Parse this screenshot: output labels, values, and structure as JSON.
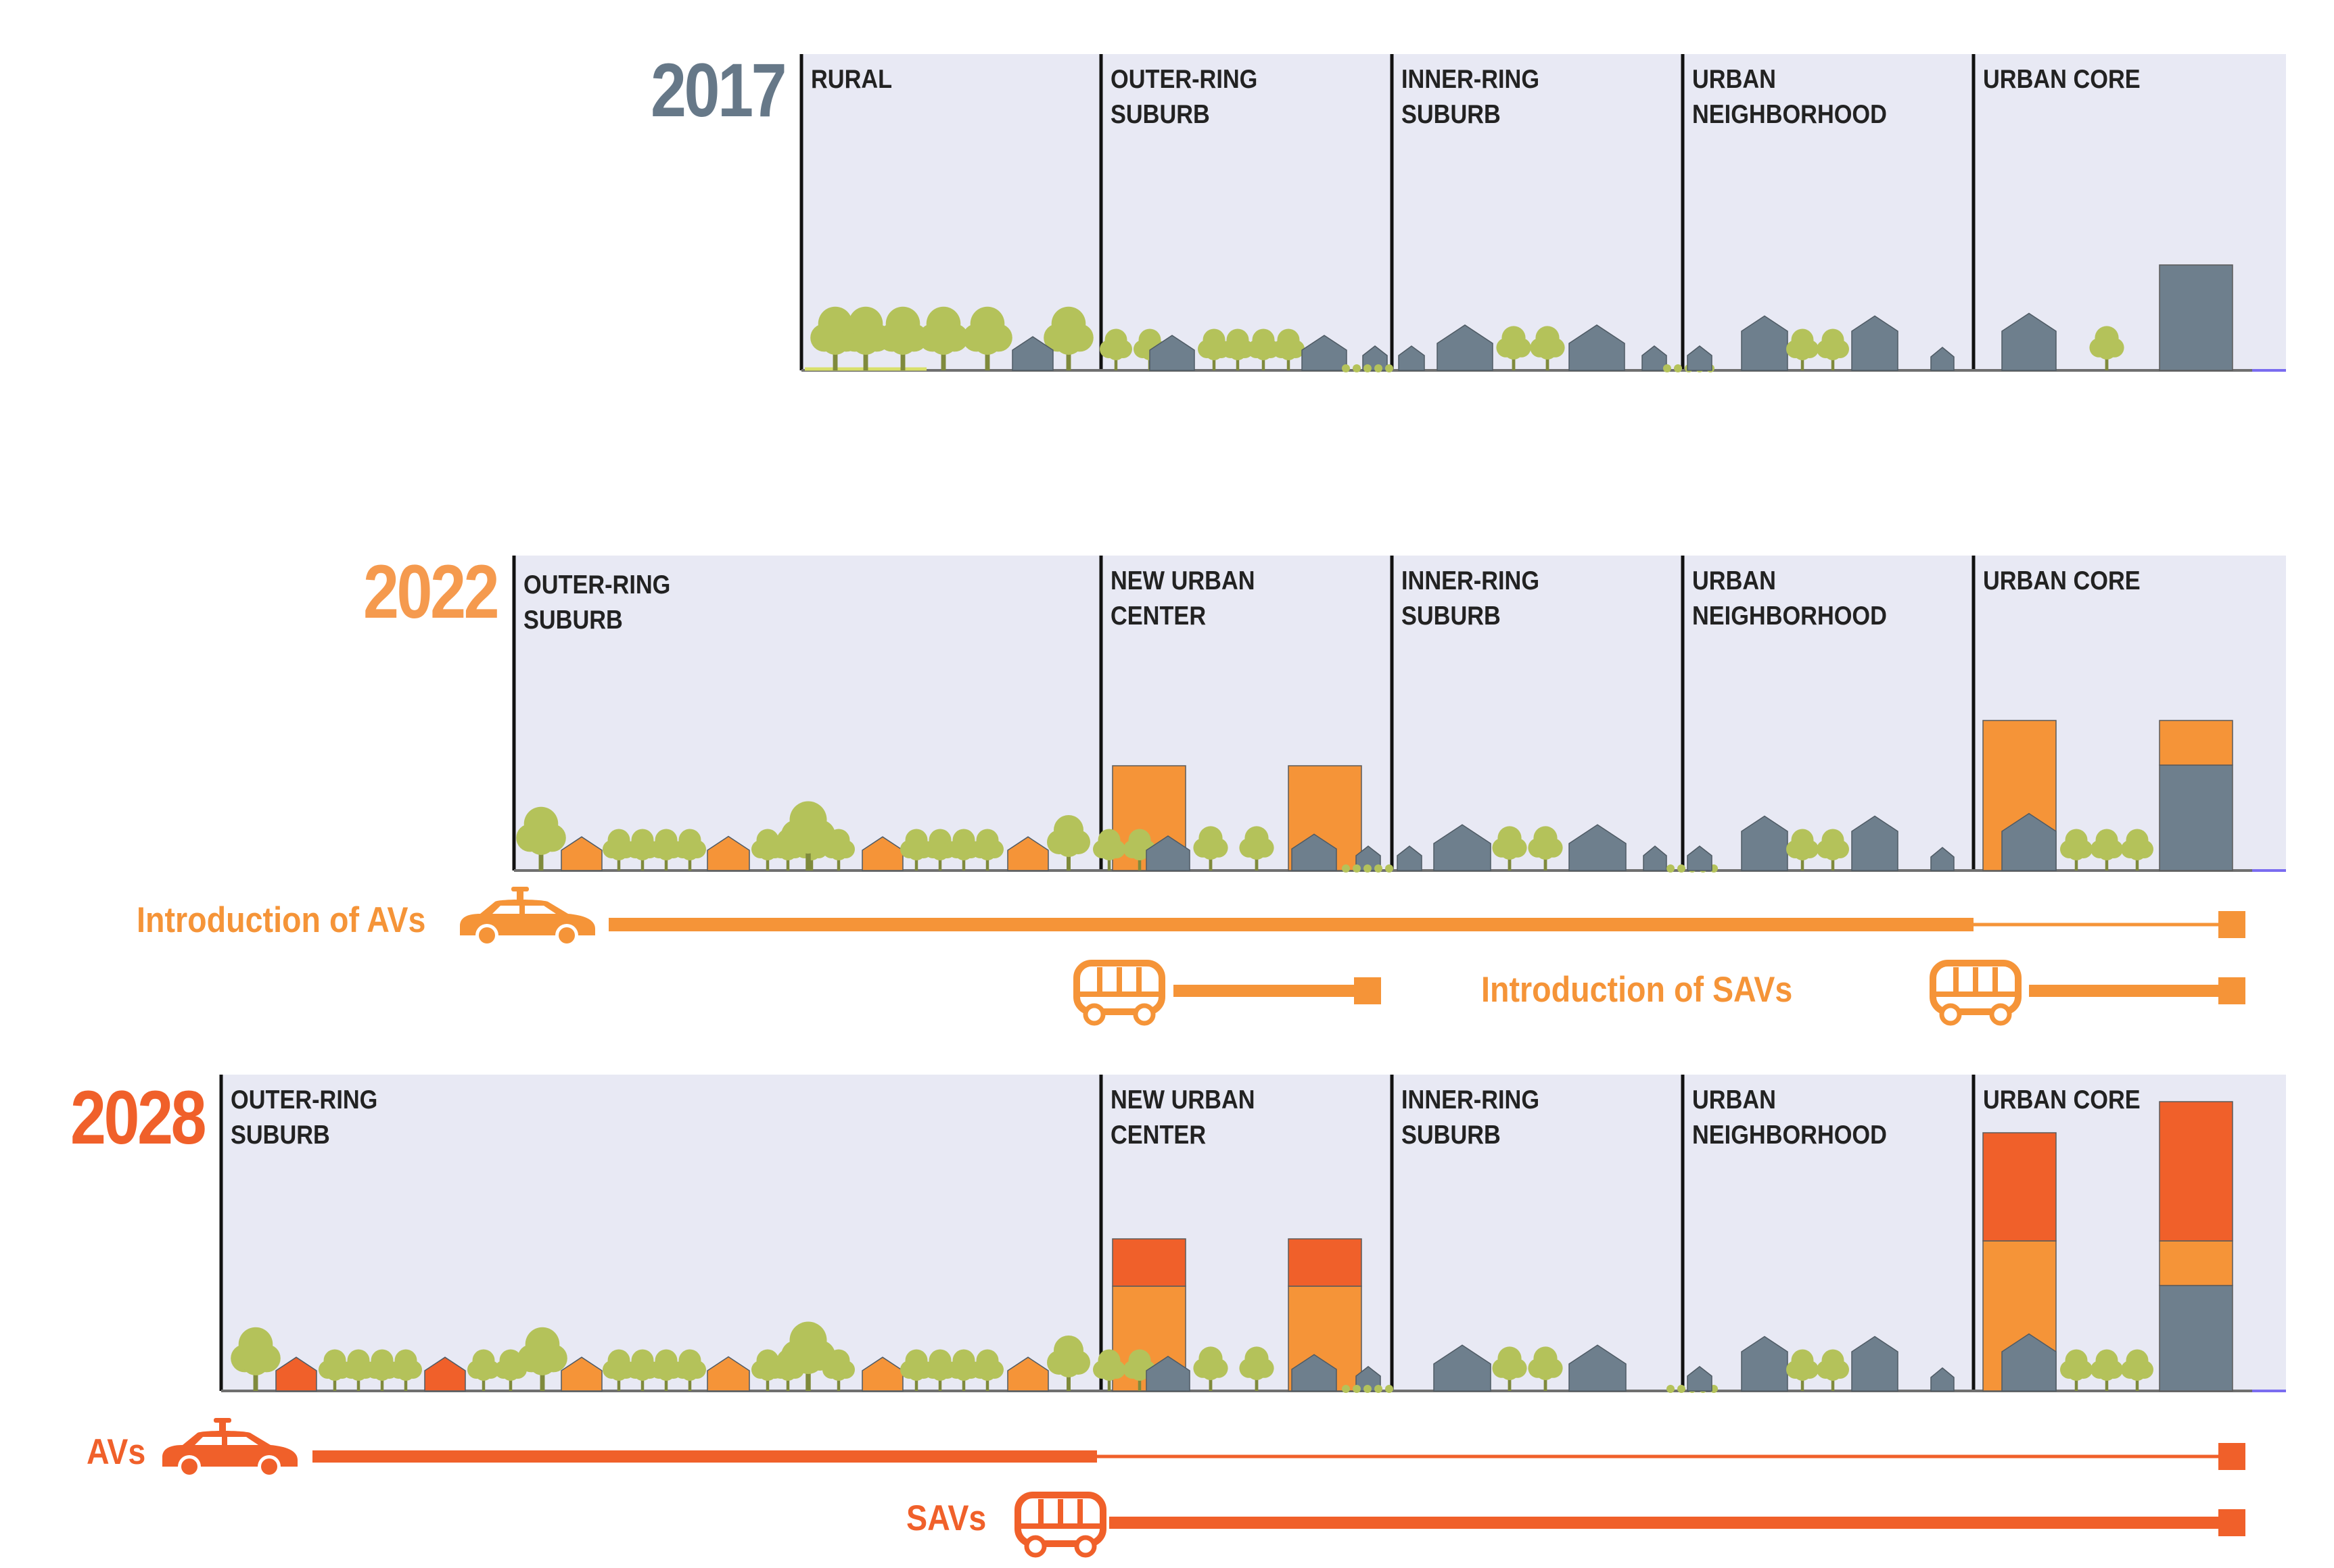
{
  "colors": {
    "panel": "#e8e9f4",
    "divider": "#111111",
    "ground": "#6f6f6f",
    "tree": "#b4c25a",
    "tree_trunk": "#7f8a3c",
    "house_gray": "#6e7f8d",
    "orange_light": "#f59438",
    "orange_dark": "#f0602a",
    "year_2017": "#667888",
    "year_2022": "#f59a4e",
    "year_2028": "#f0602a"
  },
  "rows": [
    {
      "year": "2017",
      "zones": [
        {
          "label": "RURAL"
        },
        {
          "label": "OUTER-RING\nSUBURB"
        },
        {
          "label": "INNER-RING\nSUBURB"
        },
        {
          "label": "URBAN\nNEIGHBORHOOD"
        },
        {
          "label": "URBAN CORE"
        }
      ]
    },
    {
      "year": "2022",
      "zones": [
        {
          "label": "OUTER-RING\nSUBURB"
        },
        {
          "label": "NEW URBAN\nCENTER"
        },
        {
          "label": "INNER-RING\nSUBURB"
        },
        {
          "label": "URBAN\nNEIGHBORHOOD"
        },
        {
          "label": "URBAN CORE"
        }
      ]
    },
    {
      "year": "2028",
      "zones": [
        {
          "label": "OUTER-RING\nSUBURB"
        },
        {
          "label": "NEW URBAN\nCENTER"
        },
        {
          "label": "INNER-RING\nSUBURB"
        },
        {
          "label": "URBAN\nNEIGHBORHOOD"
        },
        {
          "label": "URBAN CORE"
        }
      ]
    }
  ],
  "legend": {
    "intro_avs": "Introduction of AVs",
    "intro_savs": "Introduction of SAVs",
    "avs": "AVs",
    "savs": "SAVs"
  },
  "icons": {
    "car": "autonomous-car-icon",
    "shuttle": "shared-shuttle-icon"
  }
}
